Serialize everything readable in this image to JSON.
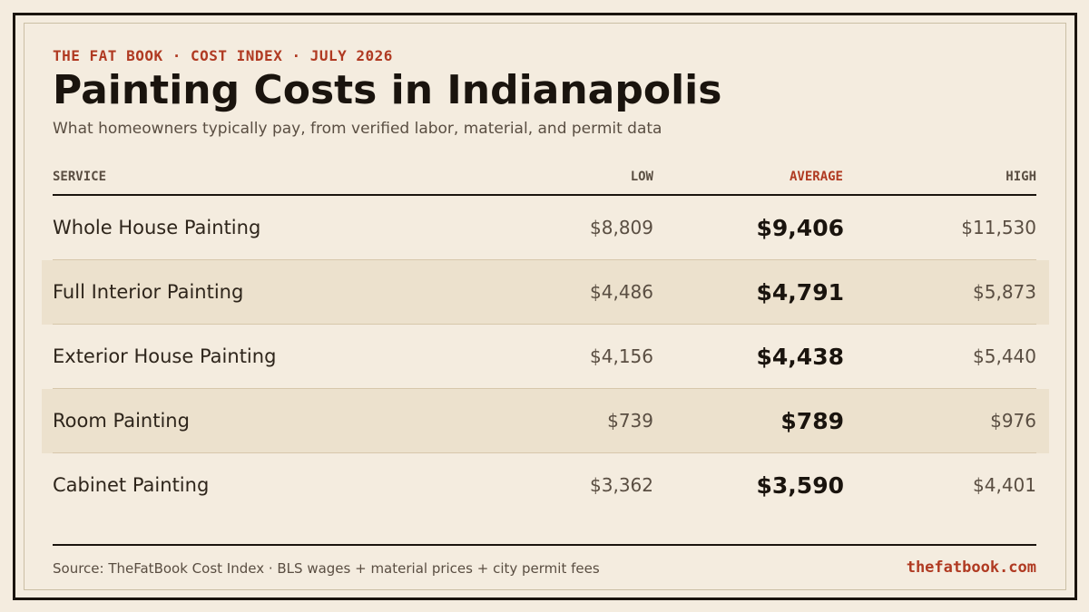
{
  "header": {
    "eyebrow": "THE FAT BOOK · COST INDEX · JULY 2026",
    "title": "Painting Costs in Indianapolis",
    "subtitle": "What homeowners typically pay, from verified labor, material, and permit data"
  },
  "table": {
    "columns": {
      "service": "SERVICE",
      "low": "LOW",
      "average": "AVERAGE",
      "high": "HIGH"
    },
    "rows": [
      {
        "service": "Whole House Painting",
        "low": "$8,809",
        "average": "$9,406",
        "high": "$11,530"
      },
      {
        "service": "Full Interior Painting",
        "low": "$4,486",
        "average": "$4,791",
        "high": "$5,873"
      },
      {
        "service": "Exterior House Painting",
        "low": "$4,156",
        "average": "$4,438",
        "high": "$5,440"
      },
      {
        "service": "Room Painting",
        "low": "$739",
        "average": "$789",
        "high": "$976"
      },
      {
        "service": "Cabinet Painting",
        "low": "$3,362",
        "average": "$3,590",
        "high": "$4,401"
      }
    ]
  },
  "footer": {
    "source": "Source: TheFatBook Cost Index · BLS wages + material prices + city permit fees",
    "site": "thefatbook.com"
  },
  "colors": {
    "background": "#f4ecdf",
    "accent": "#b03a22",
    "ink": "#1a140e",
    "shaded_row": "#ece1cd"
  }
}
